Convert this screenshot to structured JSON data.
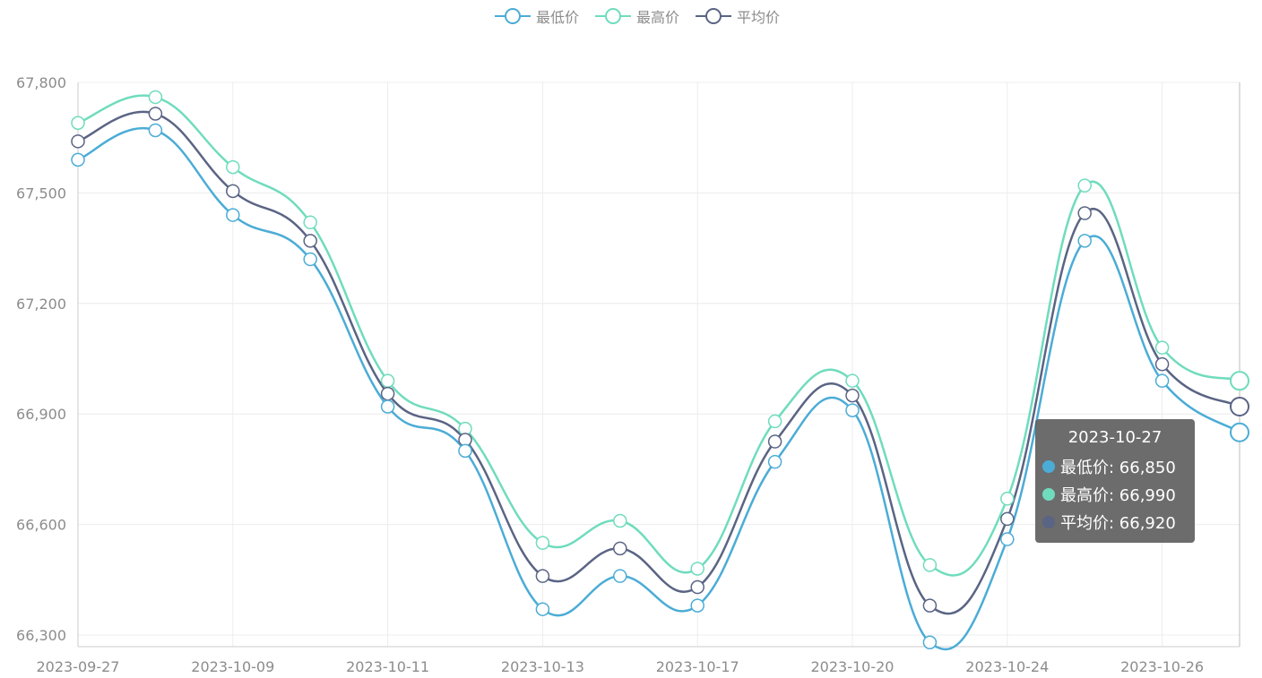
{
  "chart_data": {
    "type": "line",
    "smooth": true,
    "categories": [
      "2023-09-27",
      "2023-10-09",
      "2023-10-09",
      "2023-10-11",
      "2023-10-11",
      "2023-10-13",
      "2023-10-13",
      "2023-10-17",
      "2023-10-17",
      "2023-10-20",
      "2023-10-20",
      "2023-10-24",
      "2023-10-24",
      "2023-10-26",
      "2023-10-26",
      "2023-10-27"
    ],
    "x_tick_labels": [
      "2023-09-27",
      "2023-10-09",
      "2023-10-11",
      "2023-10-13",
      "2023-10-17",
      "2023-10-20",
      "2023-10-24",
      "2023-10-26"
    ],
    "y_tick_labels": [
      "66,300",
      "66,600",
      "66,900",
      "67,200",
      "67,500",
      "67,800"
    ],
    "ylim": [
      66270,
      67800
    ],
    "grid": true,
    "legend_position": "top-center",
    "series": [
      {
        "name": "最低价",
        "color": "#4bacd6",
        "values": [
          67590,
          67670,
          67440,
          67320,
          66920,
          66800,
          66370,
          66460,
          66380,
          66770,
          66910,
          66280,
          66560,
          67370,
          66990,
          66850
        ]
      },
      {
        "name": "最高价",
        "color": "#6fdcbd",
        "values": [
          67690,
          67760,
          67570,
          67420,
          66990,
          66860,
          66550,
          66610,
          66480,
          66880,
          66990,
          66490,
          66670,
          67520,
          67080,
          66990
        ]
      },
      {
        "name": "平均价",
        "color": "#5a6484",
        "values": [
          67640,
          67715,
          67505,
          67370,
          66955,
          66830,
          66460,
          66535,
          66430,
          66825,
          66950,
          66380,
          66615,
          67445,
          67035,
          66920
        ]
      }
    ]
  },
  "tooltip": {
    "title": "2023-10-27",
    "rows": [
      {
        "label": "最低价: 66,850",
        "color": "#4bacd6"
      },
      {
        "label": "最高价: 66,990",
        "color": "#6fdcbd"
      },
      {
        "label": "平均价: 66,920",
        "color": "#5a6484"
      }
    ]
  }
}
